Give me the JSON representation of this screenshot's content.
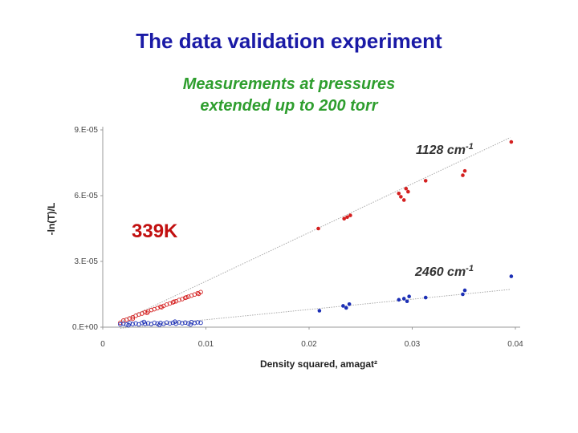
{
  "slide": {
    "title": "The data validation experiment",
    "subtitle_line1": "Measurements at pressures",
    "subtitle_line2": "extended up to 200 torr",
    "temperature_label": "339K"
  },
  "chart_data": {
    "type": "scatter",
    "xlabel": "Density squared, amagat²",
    "ylabel": "-ln(T)/L",
    "xlim": [
      0,
      0.04
    ],
    "ylim": [
      0,
      9e-05
    ],
    "x_ticks": [
      {
        "value": 0,
        "label": "0"
      },
      {
        "value": 0.01,
        "label": "0.01"
      },
      {
        "value": 0.02,
        "label": "0.02"
      },
      {
        "value": 0.03,
        "label": "0.03"
      },
      {
        "value": 0.04,
        "label": "0.04"
      }
    ],
    "y_ticks": [
      {
        "value": 0,
        "label": "0.E+00"
      },
      {
        "value": 3e-05,
        "label": "3.E-05"
      },
      {
        "value": 6e-05,
        "label": "6.E-05"
      },
      {
        "value": 9e-05,
        "label": "9.E-05"
      }
    ],
    "grid": false,
    "colors": {
      "red": "#d42020",
      "blue": "#1c2fb5",
      "trend": "#aaaaaa"
    },
    "series": [
      {
        "name": "1128 cm",
        "name_sup": "-1",
        "color": "#d42020",
        "trend": {
          "x": [
            0.0017,
            0.0395
          ],
          "y": [
            2.5e-06,
            8.65e-05
          ]
        },
        "hollow": {
          "x": [
            0.0017,
            0.002,
            0.0023,
            0.0026,
            0.0029,
            0.0032,
            0.0035,
            0.0038,
            0.0041,
            0.0044,
            0.0047,
            0.005,
            0.0053,
            0.0056,
            0.0059,
            0.0062,
            0.0065,
            0.0068,
            0.0071,
            0.0074,
            0.0077,
            0.008,
            0.0083,
            0.0086,
            0.0089,
            0.0092,
            0.0095,
            0.0029,
            0.0043,
            0.0057,
            0.0069,
            0.0081,
            0.0093
          ],
          "y": [
            2e-06,
            3e-06,
            3.4e-06,
            4e-06,
            4.5e-06,
            5.2e-06,
            5.8e-06,
            6.2e-06,
            6.8e-06,
            7.2e-06,
            7.8e-06,
            8.2e-06,
            8.7e-06,
            9.3e-06,
            9.7e-06,
            1.03e-05,
            1.08e-05,
            1.13e-05,
            1.18e-05,
            1.24e-05,
            1.28e-05,
            1.34e-05,
            1.39e-05,
            1.44e-05,
            1.49e-05,
            1.55e-05,
            1.6e-05,
            3.8e-06,
            6.5e-06,
            9.1e-06,
            1.16e-05,
            1.36e-05,
            1.52e-05
          ]
        },
        "filled": {
          "x": [
            0.0209,
            0.0234,
            0.0237,
            0.024,
            0.0287,
            0.0289,
            0.0292,
            0.0294,
            0.0296,
            0.0313,
            0.0349,
            0.0351,
            0.0396
          ],
          "y": [
            4.5e-05,
            4.95e-05,
            5.02e-05,
            5.1e-05,
            6.1e-05,
            5.95e-05,
            5.8e-05,
            6.32e-05,
            6.18e-05,
            6.68e-05,
            6.93e-05,
            7.13e-05,
            8.45e-05
          ]
        }
      },
      {
        "name": "2460 cm",
        "name_sup": "-1",
        "color": "#1c2fb5",
        "trend": {
          "x": [
            0.0017,
            0.0395
          ],
          "y": [
            -5e-07,
            1.72e-05
          ]
        },
        "hollow": {
          "x": [
            0.0017,
            0.002,
            0.0023,
            0.0026,
            0.0029,
            0.0032,
            0.0035,
            0.0038,
            0.0041,
            0.0044,
            0.0047,
            0.005,
            0.0053,
            0.0056,
            0.0059,
            0.0062,
            0.0065,
            0.0068,
            0.0071,
            0.0074,
            0.0077,
            0.008,
            0.0083,
            0.0086,
            0.0089,
            0.0092,
            0.0095,
            0.0025,
            0.004,
            0.0055,
            0.007,
            0.0085
          ],
          "y": [
            1.3e-06,
            1.6e-06,
            1.2e-06,
            1.8e-06,
            1.4e-06,
            1.7e-06,
            1.3e-06,
            1.9e-06,
            1.5e-06,
            1.8e-06,
            1.4e-06,
            2e-06,
            1.6e-06,
            1.9e-06,
            1.5e-06,
            2.1e-06,
            1.7e-06,
            2e-06,
            1.6e-06,
            2.2e-06,
            1.8e-06,
            2.1e-06,
            1.7e-06,
            2.3e-06,
            1.9e-06,
            2.2e-06,
            2e-06,
            9e-07,
            2.4e-06,
            1e-06,
            2.5e-06,
            1.2e-06
          ]
        },
        "filled": {
          "x": [
            0.021,
            0.0233,
            0.0236,
            0.0239,
            0.0287,
            0.0292,
            0.0295,
            0.0297,
            0.0313,
            0.0349,
            0.0351,
            0.0396
          ],
          "y": [
            7.5e-06,
            9.7e-06,
            8.8e-06,
            1.05e-05,
            1.25e-05,
            1.3e-05,
            1.18e-05,
            1.4e-05,
            1.35e-05,
            1.5e-05,
            1.68e-05,
            2.32e-05
          ]
        }
      }
    ]
  }
}
